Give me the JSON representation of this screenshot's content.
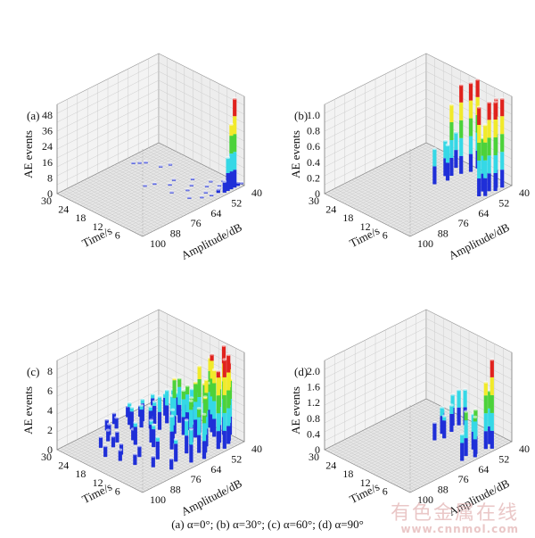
{
  "caption": "(a) α=0°; (b) α=30°; (c) α=60°; (d) α=90°",
  "watermark": {
    "line1": "有色金属在线",
    "line2": "www.cnnmol.com"
  },
  "colors": {
    "blue": "#1f2fd8",
    "cyan": "#35d8e6",
    "green": "#4cd23a",
    "yellow": "#f1ea2a",
    "red": "#e0221d",
    "floor": "#d4d4d4",
    "wall": "#dcdcdc"
  },
  "chart_data": [
    {
      "type": "bar3d",
      "panel": "(a)",
      "xlabel": "Time/s",
      "ylabel": "Amplitude/dB",
      "zlabel": "AE events",
      "xticks": [
        "6",
        "12",
        "18",
        "24",
        "30"
      ],
      "yticks": [
        "40",
        "52",
        "64",
        "76",
        "88",
        "100"
      ],
      "zticks": [
        "0",
        "8",
        "16",
        "24",
        "36",
        "48"
      ],
      "ylim": [
        40,
        100
      ],
      "zlim": [
        0,
        48
      ],
      "bars": [
        {
          "time": 1,
          "amp": 40,
          "value": 1
        },
        {
          "time": 1,
          "amp": 42,
          "value": 2
        },
        {
          "time": 1,
          "amp": 44,
          "value": 48
        },
        {
          "time": 1,
          "amp": 46,
          "value": 35
        },
        {
          "time": 1,
          "amp": 48,
          "value": 18
        },
        {
          "time": 1,
          "amp": 50,
          "value": 6
        },
        {
          "time": 2,
          "amp": 42,
          "value": 1
        },
        {
          "time": 2,
          "amp": 44,
          "value": 5
        },
        {
          "time": 2,
          "amp": 48,
          "value": 3
        },
        {
          "time": 2,
          "amp": 52,
          "value": 2
        },
        {
          "time": 2,
          "amp": 56,
          "value": 1
        },
        {
          "time": 3,
          "amp": 44,
          "value": 2
        },
        {
          "time": 3,
          "amp": 50,
          "value": 1
        },
        {
          "time": 3,
          "amp": 60,
          "value": 1
        },
        {
          "time": 4,
          "amp": 48,
          "value": 1
        },
        {
          "time": 4,
          "amp": 56,
          "value": 1
        },
        {
          "time": 5,
          "amp": 44,
          "value": 1
        },
        {
          "time": 5,
          "amp": 64,
          "value": 1
        },
        {
          "time": 6,
          "amp": 52,
          "value": 1
        },
        {
          "time": 7,
          "amp": 48,
          "value": 1
        },
        {
          "time": 8,
          "amp": 60,
          "value": 1
        },
        {
          "time": 9,
          "amp": 56,
          "value": 1
        },
        {
          "time": 10,
          "amp": 66,
          "value": 1
        },
        {
          "time": 11,
          "amp": 52,
          "value": 1
        },
        {
          "time": 13,
          "amp": 62,
          "value": 1
        },
        {
          "time": 14,
          "amp": 58,
          "value": 1
        },
        {
          "time": 16,
          "amp": 66,
          "value": 1
        },
        {
          "time": 17,
          "amp": 70,
          "value": 1
        },
        {
          "time": 20,
          "amp": 50,
          "value": 1
        },
        {
          "time": 21,
          "amp": 54,
          "value": 1
        },
        {
          "time": 25,
          "amp": 56,
          "value": 1
        },
        {
          "time": 26,
          "amp": 58,
          "value": 1
        },
        {
          "time": 27,
          "amp": 60,
          "value": 1
        }
      ]
    },
    {
      "type": "bar3d",
      "panel": "(b)",
      "xlabel": "Time/s",
      "ylabel": "Amplitude/dB",
      "zlabel": "AE events",
      "xticks": [
        "6",
        "12",
        "18",
        "24",
        "30"
      ],
      "yticks": [
        "40",
        "52",
        "64",
        "76",
        "88",
        "100"
      ],
      "zticks": [
        "0",
        "0.2",
        "0.4",
        "0.6",
        "0.8",
        "1.0"
      ],
      "ylim": [
        40,
        100
      ],
      "zlim": [
        0,
        1.0
      ],
      "bars": [
        {
          "time": 1,
          "amp": 44,
          "value": 1.0
        },
        {
          "time": 1,
          "amp": 48,
          "value": 1.0
        },
        {
          "time": 2,
          "amp": 46,
          "value": 1.0
        },
        {
          "time": 2,
          "amp": 50,
          "value": 1.0
        },
        {
          "time": 1,
          "amp": 54,
          "value": 0.8
        },
        {
          "time": 2,
          "amp": 56,
          "value": 1.0
        },
        {
          "time": 3,
          "amp": 52,
          "value": 0.6
        },
        {
          "time": 12,
          "amp": 40,
          "value": 1.0
        },
        {
          "time": 12,
          "amp": 44,
          "value": 1.0
        },
        {
          "time": 13,
          "amp": 48,
          "value": 1.0
        },
        {
          "time": 14,
          "amp": 52,
          "value": 0.8
        },
        {
          "time": 13,
          "amp": 56,
          "value": 0.4
        },
        {
          "time": 15,
          "amp": 54,
          "value": 0.4
        },
        {
          "time": 16,
          "amp": 46,
          "value": 0.4
        },
        {
          "time": 14,
          "amp": 62,
          "value": 0.4
        }
      ]
    },
    {
      "type": "bar3d",
      "panel": "(c)",
      "xlabel": "Time/s",
      "ylabel": "Amplitude/dB",
      "zlabel": "AE events",
      "xticks": [
        "6",
        "12",
        "18",
        "24",
        "30"
      ],
      "yticks": [
        "40",
        "52",
        "64",
        "76",
        "88",
        "100"
      ],
      "zticks": [
        "0",
        "2",
        "4",
        "6",
        "8"
      ],
      "ylim": [
        40,
        100
      ],
      "zlim": [
        0,
        8
      ],
      "bars": [
        {
          "time": 1,
          "amp": 50,
          "value": 8
        },
        {
          "time": 2,
          "amp": 46,
          "value": 8
        },
        {
          "time": 2,
          "amp": 52,
          "value": 7
        },
        {
          "time": 3,
          "amp": 44,
          "value": 7
        },
        {
          "time": 4,
          "amp": 48,
          "value": 6
        },
        {
          "time": 5,
          "amp": 54,
          "value": 6
        },
        {
          "time": 6,
          "amp": 42,
          "value": 8
        },
        {
          "time": 7,
          "amp": 46,
          "value": 6
        },
        {
          "time": 8,
          "amp": 50,
          "value": 5
        },
        {
          "time": 9,
          "amp": 44,
          "value": 7
        },
        {
          "time": 10,
          "amp": 52,
          "value": 5
        },
        {
          "time": 11,
          "amp": 48,
          "value": 6
        },
        {
          "time": 12,
          "amp": 40,
          "value": 6
        },
        {
          "time": 13,
          "amp": 46,
          "value": 4
        },
        {
          "time": 14,
          "amp": 50,
          "value": 4
        },
        {
          "time": 15,
          "amp": 56,
          "value": 5
        },
        {
          "time": 16,
          "amp": 44,
          "value": 3
        },
        {
          "time": 17,
          "amp": 54,
          "value": 3
        },
        {
          "time": 18,
          "amp": 48,
          "value": 4
        },
        {
          "time": 19,
          "amp": 58,
          "value": 3
        },
        {
          "time": 20,
          "amp": 52,
          "value": 3
        },
        {
          "time": 21,
          "amp": 60,
          "value": 2
        },
        {
          "time": 22,
          "amp": 56,
          "value": 2
        },
        {
          "time": 23,
          "amp": 62,
          "value": 2
        },
        {
          "time": 24,
          "amp": 66,
          "value": 2
        },
        {
          "time": 25,
          "amp": 58,
          "value": 2
        },
        {
          "time": 26,
          "amp": 64,
          "value": 2
        },
        {
          "time": 27,
          "amp": 70,
          "value": 1
        },
        {
          "time": 28,
          "amp": 74,
          "value": 1
        },
        {
          "time": 29,
          "amp": 68,
          "value": 1
        },
        {
          "time": 4,
          "amp": 60,
          "value": 4
        },
        {
          "time": 6,
          "amp": 64,
          "value": 3
        },
        {
          "time": 8,
          "amp": 58,
          "value": 4
        },
        {
          "time": 10,
          "amp": 66,
          "value": 3
        },
        {
          "time": 12,
          "amp": 62,
          "value": 3
        },
        {
          "time": 14,
          "amp": 70,
          "value": 2
        },
        {
          "time": 16,
          "amp": 68,
          "value": 2
        },
        {
          "time": 18,
          "amp": 74,
          "value": 2
        },
        {
          "time": 20,
          "amp": 72,
          "value": 1
        },
        {
          "time": 22,
          "amp": 78,
          "value": 1
        },
        {
          "time": 24,
          "amp": 80,
          "value": 1
        },
        {
          "time": 26,
          "amp": 76,
          "value": 1
        },
        {
          "time": 5,
          "amp": 72,
          "value": 2
        },
        {
          "time": 9,
          "amp": 76,
          "value": 2
        },
        {
          "time": 13,
          "amp": 80,
          "value": 1
        },
        {
          "time": 17,
          "amp": 84,
          "value": 1
        },
        {
          "time": 21,
          "amp": 82,
          "value": 1
        },
        {
          "time": 11,
          "amp": 86,
          "value": 1
        },
        {
          "time": 15,
          "amp": 88,
          "value": 1
        },
        {
          "time": 7,
          "amp": 82,
          "value": 1
        },
        {
          "time": 3,
          "amp": 78,
          "value": 1
        },
        {
          "time": 19,
          "amp": 90,
          "value": 1
        },
        {
          "time": 23,
          "amp": 86,
          "value": 1
        },
        {
          "time": 2,
          "amp": 68,
          "value": 3
        },
        {
          "time": 1,
          "amp": 62,
          "value": 4
        },
        {
          "time": 3,
          "amp": 58,
          "value": 5
        },
        {
          "time": 5,
          "amp": 40,
          "value": 5
        },
        {
          "time": 9,
          "amp": 56,
          "value": 4
        },
        {
          "time": 11,
          "amp": 42,
          "value": 4
        },
        {
          "time": 13,
          "amp": 54,
          "value": 4
        },
        {
          "time": 15,
          "amp": 42,
          "value": 3
        },
        {
          "time": 17,
          "amp": 46,
          "value": 3
        },
        {
          "time": 19,
          "amp": 50,
          "value": 3
        },
        {
          "time": 21,
          "amp": 44,
          "value": 2
        },
        {
          "time": 23,
          "amp": 48,
          "value": 2
        },
        {
          "time": 25,
          "amp": 52,
          "value": 2
        },
        {
          "time": 27,
          "amp": 56,
          "value": 1
        },
        {
          "time": 29,
          "amp": 60,
          "value": 1
        }
      ]
    },
    {
      "type": "bar3d",
      "panel": "(d)",
      "xlabel": "Time/s",
      "ylabel": "Amplitude/dB",
      "zlabel": "AE events",
      "xticks": [
        "6",
        "12",
        "18",
        "24",
        "30"
      ],
      "yticks": [
        "40",
        "52",
        "64",
        "76",
        "88",
        "100"
      ],
      "zticks": [
        "0",
        "0.4",
        "0.8",
        "1.2",
        "1.6",
        "2.0"
      ],
      "ylim": [
        40,
        100
      ],
      "zlim": [
        0,
        2.0
      ],
      "bars": [
        {
          "time": 1,
          "amp": 50,
          "value": 2.0
        },
        {
          "time": 2,
          "amp": 52,
          "value": 1.5
        },
        {
          "time": 3,
          "amp": 48,
          "value": 1.2
        },
        {
          "time": 2,
          "amp": 58,
          "value": 1.0
        },
        {
          "time": 1,
          "amp": 60,
          "value": 0.9
        },
        {
          "time": 3,
          "amp": 62,
          "value": 1.0
        },
        {
          "time": 4,
          "amp": 56,
          "value": 0.8
        },
        {
          "time": 2,
          "amp": 66,
          "value": 0.6
        },
        {
          "time": 14,
          "amp": 44,
          "value": 0.8
        },
        {
          "time": 15,
          "amp": 46,
          "value": 0.8
        },
        {
          "time": 16,
          "amp": 48,
          "value": 0.7
        },
        {
          "time": 14,
          "amp": 52,
          "value": 0.6
        },
        {
          "time": 15,
          "amp": 56,
          "value": 0.6
        },
        {
          "time": 13,
          "amp": 58,
          "value": 0.5
        },
        {
          "time": 16,
          "amp": 54,
          "value": 0.5
        },
        {
          "time": 14,
          "amp": 62,
          "value": 0.4
        }
      ]
    }
  ]
}
